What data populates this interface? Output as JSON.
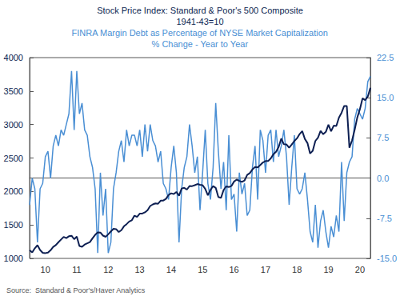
{
  "chart_data": {
    "type": "line",
    "source": "Source:  Standard & Poor's/Haver Analytics",
    "categories": [
      null,
      null,
      null,
      null,
      null,
      null,
      "10",
      null,
      null,
      null,
      null,
      null,
      null,
      null,
      null,
      null,
      null,
      null,
      "11",
      null,
      null,
      null,
      null,
      null,
      null,
      null,
      null,
      null,
      null,
      null,
      "12",
      null,
      null,
      null,
      null,
      null,
      null,
      null,
      null,
      null,
      null,
      null,
      "13",
      null,
      null,
      null,
      null,
      null,
      null,
      null,
      null,
      null,
      null,
      null,
      "14",
      null,
      null,
      null,
      null,
      null,
      null,
      null,
      null,
      null,
      null,
      null,
      "15",
      null,
      null,
      null,
      null,
      null,
      null,
      null,
      null,
      null,
      null,
      null,
      "16",
      null,
      null,
      null,
      null,
      null,
      null,
      null,
      null,
      null,
      null,
      null,
      "17",
      null,
      null,
      null,
      null,
      null,
      null,
      null,
      null,
      null,
      null,
      null,
      "18",
      null,
      null,
      null,
      null,
      null,
      null,
      null,
      null,
      null,
      null,
      null,
      "19",
      null,
      null,
      null,
      null,
      null,
      null,
      null,
      null,
      null,
      null,
      null,
      "20",
      null,
      null,
      null,
      null
    ],
    "ylim": [
      1000,
      4000
    ],
    "yticks": [
      1000,
      1500,
      2000,
      2500,
      3000,
      3500,
      4000
    ],
    "y2lim": [
      -15,
      22.5
    ],
    "y2ticks": [
      {
        "value": -15,
        "label": "-15.0"
      },
      {
        "value": -7.5,
        "label": "-7.5"
      },
      {
        "value": 0,
        "label": "0.0"
      },
      {
        "value": 7.5,
        "label": "7.5"
      },
      {
        "value": 15,
        "label": "15.0"
      },
      {
        "value": 22.5,
        "label": "22.5"
      }
    ],
    "grid": false,
    "series": [
      {
        "name": "Stock Price Index: Standard & Poor's 500 Composite",
        "subtitle": "1941-43=10",
        "color": "#0d1f52",
        "axis": "y",
        "values": [
          1123,
          1089,
          1152,
          1197,
          1125,
          1083,
          1079,
          1087,
          1122,
          1171,
          1198,
          1242,
          1282,
          1321,
          1304,
          1331,
          1338,
          1287,
          1325,
          1185,
          1173,
          1207,
          1226,
          1243,
          1300,
          1352,
          1389,
          1386,
          1341,
          1323,
          1360,
          1403,
          1443,
          1437,
          1394,
          1422,
          1480,
          1512,
          1551,
          1570,
          1639,
          1619,
          1668,
          1670,
          1688,
          1721,
          1783,
          1807,
          1822,
          1817,
          1863,
          1864,
          1889,
          1947,
          1973,
          1961,
          1993,
          1937,
          2044,
          2054,
          2028,
          2082,
          2080,
          2094,
          2111,
          2099,
          2094,
          2039,
          1944,
          2024,
          2081,
          2054,
          1918,
          1904,
          2022,
          2076,
          2066,
          2083,
          2149,
          2177,
          2158,
          2143,
          2165,
          2247,
          2275,
          2329,
          2366,
          2360,
          2395,
          2434,
          2454,
          2456,
          2493,
          2557,
          2593,
          2664,
          2790,
          2705,
          2703,
          2654,
          2702,
          2754,
          2794,
          2858,
          2902,
          2785,
          2723,
          2567,
          2607,
          2754,
          2804,
          2904,
          2855,
          2890,
          2997,
          2898,
          2983,
          2978,
          3104,
          3176,
          3278,
          3277,
          2652,
          2762,
          2920,
          3105,
          3230,
          3391,
          3365,
          3418,
          3548
        ]
      },
      {
        "name": "FINRA Margin Debt as Percentage of NYSE Market Capitalization",
        "subtitle": "% Change - Year to Year",
        "color": "#4a8fd4",
        "axis": "y2",
        "values": [
          -5,
          0,
          -2,
          -12,
          -2,
          -1,
          4,
          5,
          0,
          6,
          8,
          6,
          9,
          8,
          10,
          12,
          20,
          9,
          20,
          12,
          14,
          9,
          8,
          4,
          2,
          -2,
          -14,
          1,
          -7,
          -2,
          -14,
          -12,
          -2,
          1,
          5,
          7,
          3,
          9,
          6,
          8,
          8,
          6,
          9,
          4,
          10,
          5,
          10,
          7,
          6,
          3,
          5,
          -1,
          -2,
          -4,
          2,
          6,
          1,
          -12,
          -2,
          2,
          4,
          10,
          6,
          1,
          4,
          -6,
          1,
          9,
          -1,
          -4,
          2,
          14,
          5,
          -2,
          3,
          -6,
          8,
          -4,
          -3,
          -10,
          1,
          -3,
          -1,
          -7,
          -6,
          2,
          6,
          -4,
          9,
          7,
          1,
          8,
          9,
          3,
          9,
          4,
          6,
          9,
          4,
          -5,
          2,
          8,
          -2,
          -3,
          -2,
          1,
          -4,
          -10,
          -12,
          -5,
          -13,
          -8,
          -6,
          -10,
          -13,
          -9,
          -11,
          -7,
          -10,
          3,
          -8,
          1,
          3,
          4,
          11,
          13,
          12,
          11,
          13,
          18,
          19
        ]
      }
    ]
  }
}
